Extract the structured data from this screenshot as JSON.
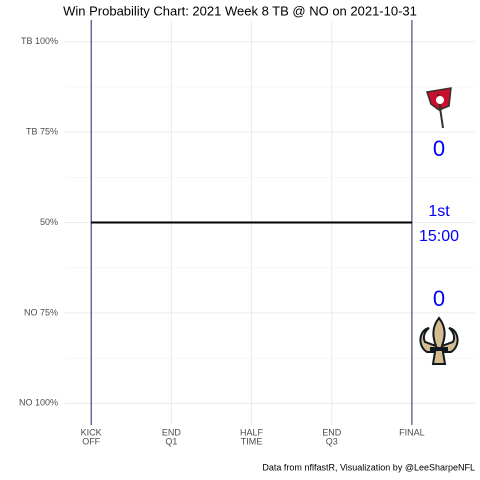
{
  "chart_data": {
    "type": "line",
    "title": "Win Probability Chart: 2021 Week 8 TB @ NO on 2021-10-31",
    "caption": "Data from nflfastR, Visualization by @LeeSharpeNFL",
    "x": [
      0,
      60
    ],
    "series": [
      {
        "name": "TB",
        "color": "#000000",
        "values": [
          50,
          50
        ]
      }
    ],
    "xlim": [
      -4.9,
      71.8
    ],
    "xticks": [
      {
        "value": 0,
        "label": [
          "KICK",
          "OFF"
        ]
      },
      {
        "value": 15,
        "label": [
          "END",
          "Q1"
        ]
      },
      {
        "value": 30,
        "label": [
          "HALF",
          "TIME"
        ]
      },
      {
        "value": 45,
        "label": [
          "END",
          "Q3"
        ]
      },
      {
        "value": 60,
        "label": [
          "FINAL"
        ]
      }
    ],
    "ylim": [
      -6,
      106
    ],
    "yticks": [
      {
        "value": 0,
        "label": "NO 100%"
      },
      {
        "value": 25,
        "label": "NO 75%"
      },
      {
        "value": 50,
        "label": "50%"
      },
      {
        "value": 75,
        "label": "TB 75%"
      },
      {
        "value": 100,
        "label": "TB 100%"
      }
    ],
    "grid": true,
    "annotations": {
      "away_score": "0",
      "home_score": "0",
      "quarter": "1st",
      "clock": "15:00"
    },
    "annotation_color": "#0000ff",
    "period_line_color": "#1f2a6b"
  }
}
